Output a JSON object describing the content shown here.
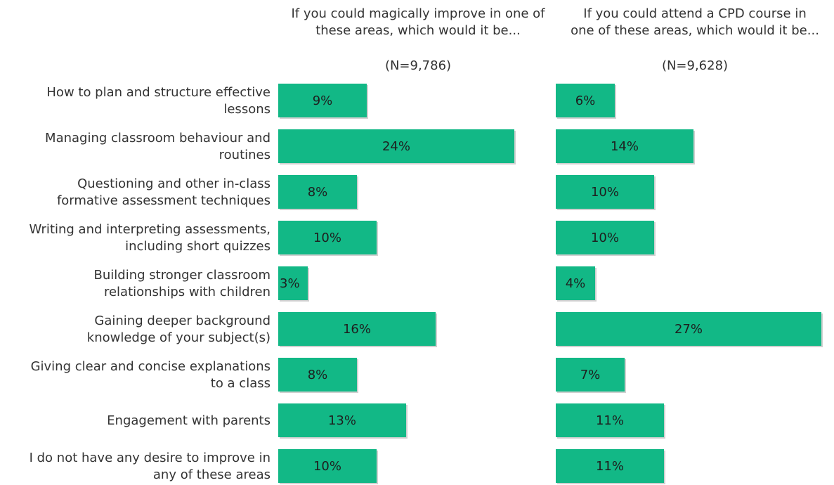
{
  "chart_data": {
    "type": "bar",
    "orientation": "horizontal",
    "categories": [
      "How to plan and structure effective lessons",
      "Managing classroom behaviour and routines",
      "Questioning and other in-class formative assessment techniques",
      "Writing and interpreting assessments, including short quizzes",
      "Building stronger classroom relationships with children",
      "Gaining deeper background knowledge of your subject(s)",
      "Giving clear and concise explanations to a class",
      "Engagement with parents",
      "I do not have any desire to improve in any of these areas"
    ],
    "category_lines": [
      [
        "How to plan and structure effective",
        "lessons"
      ],
      [
        "Managing classroom behaviour and",
        "routines"
      ],
      [
        "Questioning and other in-class",
        "formative assessment techniques"
      ],
      [
        "Writing and interpreting assessments,",
        "including short quizzes"
      ],
      [
        "Building stronger classroom",
        "relationships with children"
      ],
      [
        "Gaining deeper background",
        "knowledge of your subject(s)"
      ],
      [
        "Giving clear and concise explanations",
        "to a class"
      ],
      [
        "Engagement with parents"
      ],
      [
        "I do not have any desire to improve in",
        "any of these areas"
      ]
    ],
    "panels": [
      {
        "title_lines": [
          "If you could magically improve in one of",
          "these areas, which would it be..."
        ],
        "n_label": "(N=9,786)",
        "values": [
          9,
          24,
          8,
          10,
          3,
          16,
          8,
          13,
          10
        ],
        "value_labels": [
          "9%",
          "24%",
          "8%",
          "10%",
          "3%",
          "16%",
          "8%",
          "13%",
          "10%"
        ]
      },
      {
        "title_lines": [
          "If you could attend a CPD course in",
          "one of these areas, which would it be..."
        ],
        "n_label": "(N=9,628)",
        "values": [
          6,
          14,
          10,
          10,
          4,
          27,
          7,
          11,
          11
        ],
        "value_labels": [
          "6%",
          "14%",
          "10%",
          "10%",
          "4%",
          "27%",
          "7%",
          "11%",
          "11%"
        ]
      }
    ],
    "unit": "%",
    "grid": false,
    "legend": "none",
    "colors": {
      "bar": "#12b886",
      "bar_shadow": "#d0d0d0",
      "text": "#333333"
    }
  }
}
